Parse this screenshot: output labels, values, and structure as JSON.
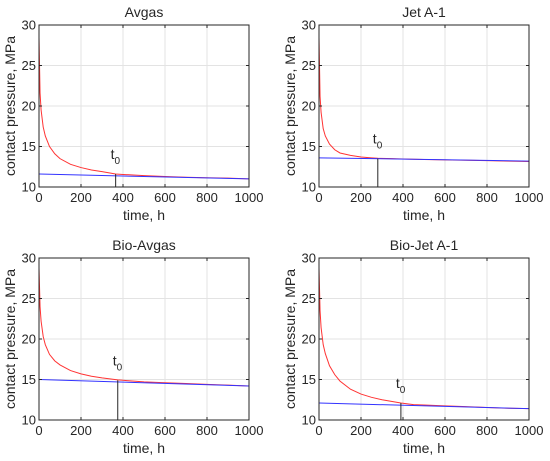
{
  "chart_data": [
    {
      "type": "line",
      "title": "Avgas",
      "xlabel": "time, h",
      "ylabel": "contact pressure, MPa",
      "xlim": [
        0,
        1000
      ],
      "ylim": [
        10,
        30
      ],
      "xticks": [
        "0",
        "200",
        "400",
        "600",
        "800",
        "1000"
      ],
      "yticks": [
        "10",
        "15",
        "20",
        "25",
        "30"
      ],
      "grid": true,
      "series": [
        {
          "color": "#ff3333",
          "x": [
            0,
            5,
            10,
            20,
            30,
            50,
            75,
            100,
            150,
            200,
            250,
            300,
            365,
            400,
            500,
            600,
            700,
            800,
            900,
            1000
          ],
          "y": [
            28.5,
            21.6,
            19.5,
            17.4,
            16.3,
            15.0,
            14.1,
            13.5,
            12.8,
            12.4,
            12.1,
            11.9,
            11.6,
            11.55,
            11.4,
            11.3,
            11.2,
            11.15,
            11.1,
            11.0
          ]
        },
        {
          "color": "#3333ff",
          "x": [
            0,
            1000
          ],
          "y": [
            11.6,
            11.0
          ]
        }
      ],
      "annotation": {
        "text": "t",
        "sub": "0",
        "x": 365,
        "y_from": 10,
        "y_to": 11.6
      }
    },
    {
      "type": "line",
      "title": "Jet A-1",
      "xlabel": "time, h",
      "ylabel": "contact pressure, MPa",
      "xlim": [
        0,
        1000
      ],
      "ylim": [
        10,
        30
      ],
      "xticks": [
        "0",
        "200",
        "400",
        "600",
        "800",
        "1000"
      ],
      "yticks": [
        "10",
        "15",
        "20",
        "25",
        "30"
      ],
      "grid": true,
      "series": [
        {
          "color": "#ff3333",
          "x": [
            0,
            5,
            10,
            20,
            30,
            50,
            75,
            100,
            150,
            200,
            250,
            280,
            350,
            400,
            500,
            600,
            700,
            800,
            900,
            1000
          ],
          "y": [
            28.5,
            21.2,
            19.2,
            17.2,
            16.3,
            15.3,
            14.6,
            14.2,
            13.9,
            13.7,
            13.6,
            13.55,
            13.5,
            13.45,
            13.4,
            13.35,
            13.3,
            13.25,
            13.2,
            13.15
          ]
        },
        {
          "color": "#3333ff",
          "x": [
            0,
            1000
          ],
          "y": [
            13.6,
            13.2
          ]
        }
      ],
      "annotation": {
        "text": "t",
        "sub": "0",
        "x": 280,
        "y_from": 10,
        "y_to": 13.5
      }
    },
    {
      "type": "line",
      "title": "Bio-Avgas",
      "xlabel": "time, h",
      "ylabel": "contact pressure, MPa",
      "xlim": [
        0,
        1000
      ],
      "ylim": [
        10,
        30
      ],
      "xticks": [
        "0",
        "200",
        "400",
        "600",
        "800",
        "1000"
      ],
      "yticks": [
        "10",
        "15",
        "20",
        "25",
        "30"
      ],
      "grid": true,
      "series": [
        {
          "color": "#ff3333",
          "x": [
            0,
            5,
            10,
            20,
            30,
            50,
            75,
            100,
            150,
            200,
            250,
            300,
            375,
            400,
            500,
            600,
            700,
            800,
            900,
            1000
          ],
          "y": [
            28.8,
            24.0,
            22.2,
            20.3,
            19.3,
            18.1,
            17.3,
            16.8,
            16.1,
            15.7,
            15.4,
            15.2,
            14.95,
            14.9,
            14.7,
            14.6,
            14.5,
            14.4,
            14.3,
            14.2
          ]
        },
        {
          "color": "#3333ff",
          "x": [
            0,
            1000
          ],
          "y": [
            15.0,
            14.2
          ]
        }
      ],
      "annotation": {
        "text": "t",
        "sub": "0",
        "x": 375,
        "y_from": 10,
        "y_to": 14.9
      }
    },
    {
      "type": "line",
      "title": "Bio-Jet A-1",
      "xlabel": "time, h",
      "ylabel": "contact pressure, MPa",
      "xlim": [
        0,
        1000
      ],
      "ylim": [
        10,
        30
      ],
      "xticks": [
        "0",
        "200",
        "400",
        "600",
        "800",
        "1000"
      ],
      "yticks": [
        "10",
        "15",
        "20",
        "25",
        "30"
      ],
      "grid": true,
      "series": [
        {
          "color": "#ff3333",
          "x": [
            0,
            5,
            10,
            20,
            30,
            50,
            75,
            100,
            150,
            200,
            250,
            300,
            390,
            450,
            500,
            600,
            700,
            800,
            900,
            1000
          ],
          "y": [
            28.8,
            23.5,
            21.4,
            19.3,
            18.2,
            16.7,
            15.6,
            14.8,
            13.8,
            13.2,
            12.8,
            12.5,
            12.1,
            11.9,
            11.85,
            11.75,
            11.65,
            11.55,
            11.45,
            11.4
          ]
        },
        {
          "color": "#3333ff",
          "x": [
            0,
            1000
          ],
          "y": [
            12.1,
            11.4
          ]
        }
      ],
      "annotation": {
        "text": "t",
        "sub": "0",
        "x": 390,
        "y_from": 10,
        "y_to": 12.1
      }
    }
  ]
}
